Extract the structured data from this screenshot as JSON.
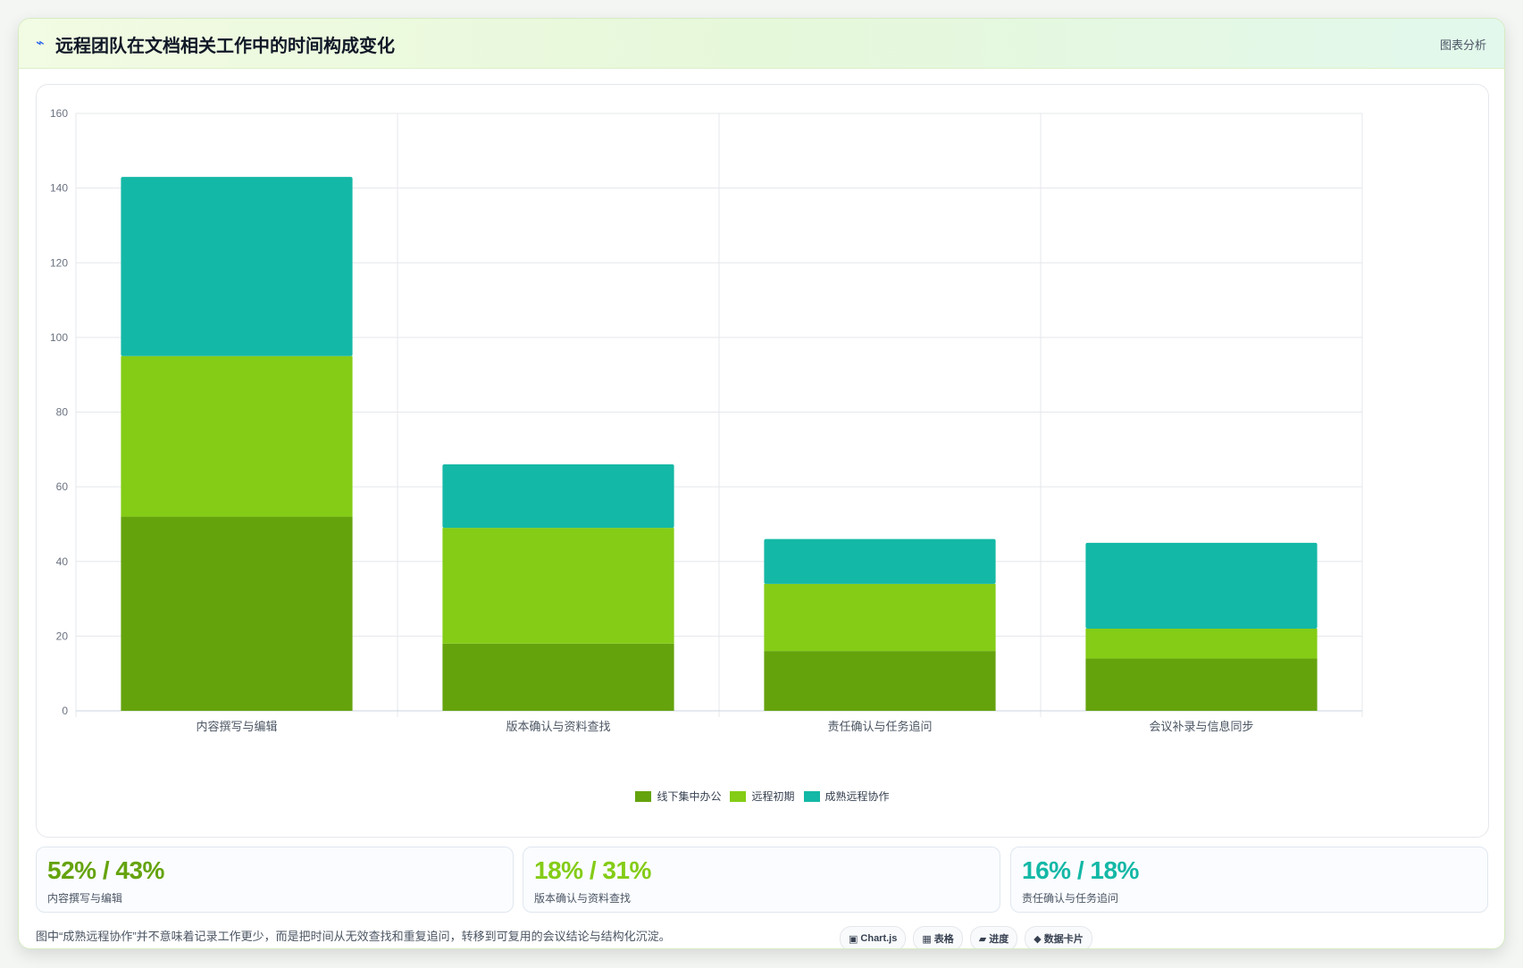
{
  "header": {
    "icon": "pulse-icon",
    "title": "远程团队在文档相关工作中的时间构成变化",
    "link_label": "图表分析"
  },
  "colors": {
    "office": "#65a30d",
    "early_remote": "#84cc16",
    "mature_remote": "#14b8a6",
    "grid": "#e5e7eb",
    "axis_text": "#6b7280"
  },
  "chart_data": {
    "type": "bar",
    "stacked": true,
    "title": "远程团队在文档相关工作中的时间构成变化",
    "categories": [
      "内容撰写与编辑",
      "版本确认与资料查找",
      "责任确认与任务追问",
      "会议补录与信息同步"
    ],
    "series": [
      {
        "name": "线下集中办公",
        "color": "#65a30d",
        "values": [
          52,
          18,
          16,
          14
        ]
      },
      {
        "name": "远程初期",
        "color": "#84cc16",
        "values": [
          43,
          31,
          18,
          8
        ]
      },
      {
        "name": "成熟远程协作",
        "color": "#14b8a6",
        "values": [
          48,
          17,
          12,
          23
        ]
      }
    ],
    "xlabel": "",
    "ylabel": "",
    "ylim": [
      0,
      160
    ],
    "yticks": [
      0,
      20,
      40,
      60,
      80,
      100,
      120,
      140,
      160
    ],
    "grid": true,
    "legend": "bottom"
  },
  "stats": [
    {
      "value": "52% / 43%",
      "label": "内容撰写与编辑",
      "color": "#65a30d"
    },
    {
      "value": "18% / 31%",
      "label": "版本确认与资料查找",
      "color": "#84cc16"
    },
    {
      "value": "16% / 18%",
      "label": "责任确认与任务追问",
      "color": "#14b8a6"
    }
  ],
  "footnote": "图中“成熟远程协作”并不意味着记录工作更少，而是把时间从无效查找和重复追问，转移到可复用的会议结论与结构化沉淀。",
  "chips": [
    {
      "icon": "▣",
      "icon_name": "chart-icon",
      "label": "Chart.js"
    },
    {
      "icon": "▦",
      "icon_name": "table-icon",
      "label": "表格"
    },
    {
      "icon": "▰",
      "icon_name": "progress-icon",
      "label": "进度"
    },
    {
      "icon": "◆",
      "icon_name": "card-icon",
      "label": "数据卡片"
    }
  ]
}
